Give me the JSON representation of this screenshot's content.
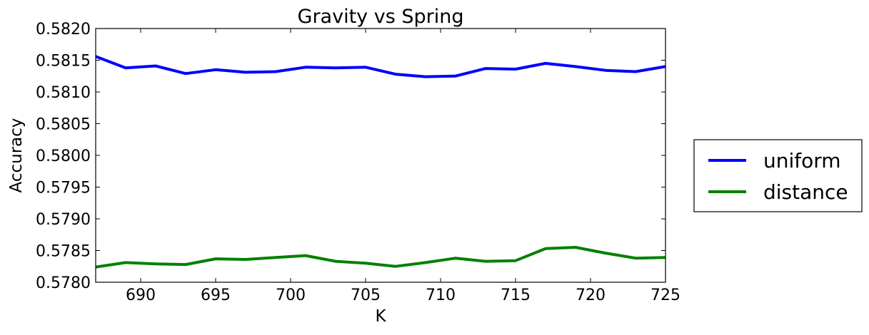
{
  "chart_data": {
    "type": "line",
    "title": "Gravity vs Spring",
    "xlabel": "K",
    "ylabel": "Accuracy",
    "xlim": [
      687,
      725
    ],
    "ylim": [
      0.578,
      0.582
    ],
    "xticks": [
      690,
      695,
      700,
      705,
      710,
      715,
      720,
      725
    ],
    "xtick_labels": [
      "690",
      "695",
      "700",
      "705",
      "710",
      "715",
      "720",
      "725"
    ],
    "yticks": [
      0.578,
      0.5785,
      0.579,
      0.5795,
      0.58,
      0.5805,
      0.581,
      0.5815,
      0.582
    ],
    "ytick_labels": [
      "0.5780",
      "0.5785",
      "0.5790",
      "0.5795",
      "0.5800",
      "0.5805",
      "0.5810",
      "0.5815",
      "0.5820"
    ],
    "grid": false,
    "legend_placement": "outside-right",
    "x": [
      687,
      689,
      691,
      693,
      695,
      697,
      699,
      701,
      703,
      705,
      707,
      709,
      711,
      713,
      715,
      717,
      719,
      721,
      723,
      725
    ],
    "series": [
      {
        "name": "uniform",
        "color": "#0000ff",
        "values": [
          0.58156,
          0.58138,
          0.58141,
          0.58129,
          0.58135,
          0.58131,
          0.58132,
          0.58139,
          0.58138,
          0.58139,
          0.58128,
          0.58124,
          0.58125,
          0.58137,
          0.58136,
          0.58145,
          0.5814,
          0.58134,
          0.58132,
          0.5814
        ]
      },
      {
        "name": "distance",
        "color": "#008000",
        "values": [
          0.57824,
          0.57831,
          0.57829,
          0.57828,
          0.57837,
          0.57836,
          0.57839,
          0.57842,
          0.57833,
          0.5783,
          0.57825,
          0.57831,
          0.57838,
          0.57833,
          0.57834,
          0.57853,
          0.57855,
          0.57846,
          0.57838,
          0.57839
        ]
      }
    ]
  }
}
